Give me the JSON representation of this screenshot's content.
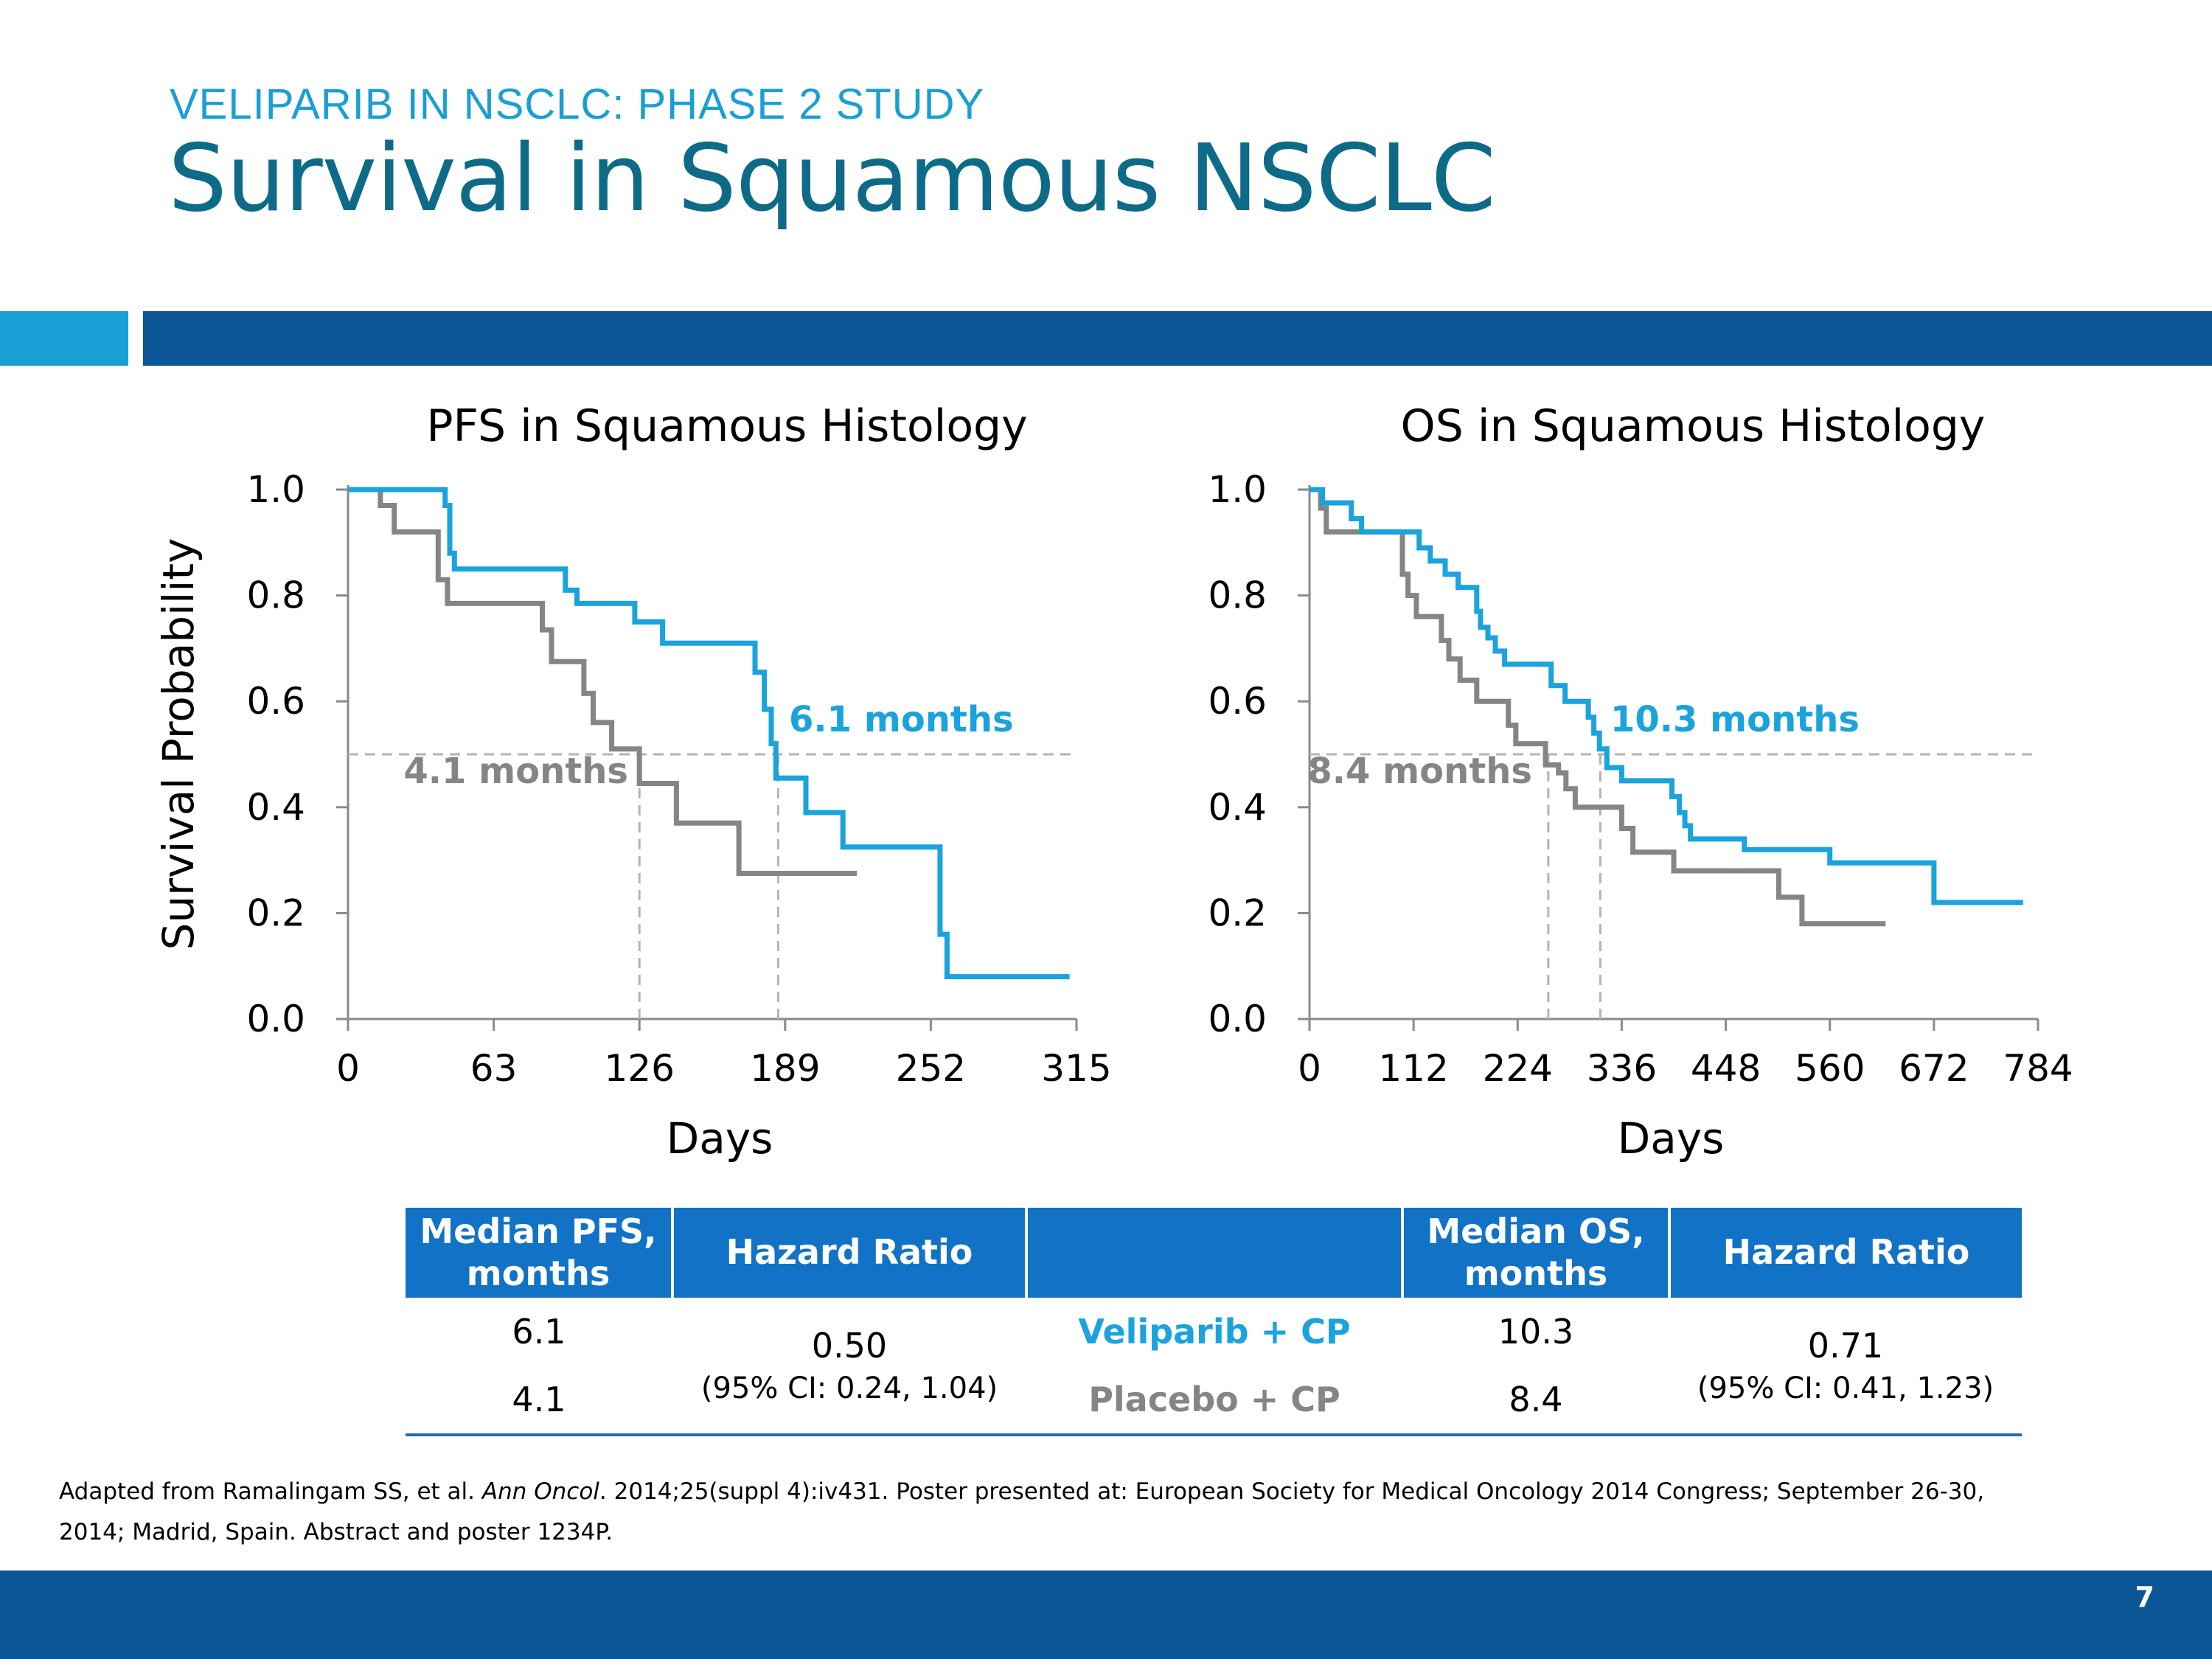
{
  "header": {
    "subtitle": "VELIPARIB IN NSCLC: PHASE 2 STUDY",
    "title": "Survival in Squamous NSCLC"
  },
  "colors": {
    "veliparib": "#1aa3dc",
    "placebo": "#858585",
    "accent": "#0c5696"
  },
  "chart_data": [
    {
      "type": "line",
      "title": "PFS in Squamous Histology",
      "xlabel": "Days",
      "ylabel": "Survival Probability",
      "xlim": [
        0,
        315
      ],
      "ylim": [
        0,
        1
      ],
      "xticks": [
        0,
        63,
        126,
        189,
        252,
        315
      ],
      "yticks": [
        "0.0",
        "0.2",
        "0.4",
        "0.6",
        "0.8",
        "1.0"
      ],
      "median_line_y": 0.5,
      "series": [
        {
          "arm": "veliparib",
          "median_x": 186,
          "median_label": "6.1 months",
          "points": [
            [
              0,
              1.0
            ],
            [
              42,
              1.0
            ],
            [
              42,
              0.97
            ],
            [
              44,
              0.97
            ],
            [
              44,
              0.88
            ],
            [
              46,
              0.88
            ],
            [
              46,
              0.85
            ],
            [
              94,
              0.85
            ],
            [
              94,
              0.81
            ],
            [
              99,
              0.81
            ],
            [
              99,
              0.785
            ],
            [
              124,
              0.785
            ],
            [
              124,
              0.75
            ],
            [
              136,
              0.75
            ],
            [
              136,
              0.71
            ],
            [
              176,
              0.71
            ],
            [
              176,
              0.655
            ],
            [
              180,
              0.655
            ],
            [
              180,
              0.585
            ],
            [
              183,
              0.585
            ],
            [
              183,
              0.52
            ],
            [
              185,
              0.52
            ],
            [
              185,
              0.455
            ],
            [
              198,
              0.455
            ],
            [
              198,
              0.39
            ],
            [
              214,
              0.39
            ],
            [
              214,
              0.325
            ],
            [
              256,
              0.325
            ],
            [
              256,
              0.16
            ],
            [
              259,
              0.16
            ],
            [
              259,
              0.08
            ],
            [
              312,
              0.08
            ]
          ]
        },
        {
          "arm": "placebo",
          "median_x": 126,
          "median_label": "4.1 months",
          "points": [
            [
              0,
              1.0
            ],
            [
              14,
              1.0
            ],
            [
              14,
              0.97
            ],
            [
              20,
              0.97
            ],
            [
              20,
              0.92
            ],
            [
              39,
              0.92
            ],
            [
              39,
              0.83
            ],
            [
              43,
              0.83
            ],
            [
              43,
              0.785
            ],
            [
              84,
              0.785
            ],
            [
              84,
              0.735
            ],
            [
              88,
              0.735
            ],
            [
              88,
              0.675
            ],
            [
              102,
              0.675
            ],
            [
              102,
              0.615
            ],
            [
              106,
              0.615
            ],
            [
              106,
              0.56
            ],
            [
              114,
              0.56
            ],
            [
              114,
              0.51
            ],
            [
              126,
              0.51
            ],
            [
              126,
              0.445
            ],
            [
              142,
              0.445
            ],
            [
              142,
              0.37
            ],
            [
              169,
              0.37
            ],
            [
              169,
              0.275
            ],
            [
              220,
              0.275
            ]
          ]
        }
      ]
    },
    {
      "type": "line",
      "title": "OS in Squamous Histology",
      "xlabel": "Days",
      "ylabel": "",
      "xlim": [
        0,
        784
      ],
      "ylim": [
        0,
        1
      ],
      "xticks": [
        0,
        112,
        224,
        336,
        448,
        560,
        672,
        784
      ],
      "yticks": [
        "0.0",
        "0.2",
        "0.4",
        "0.6",
        "0.8",
        "1.0"
      ],
      "median_line_y": 0.5,
      "series": [
        {
          "arm": "veliparib",
          "median_x": 313,
          "median_label": "10.3 months",
          "points": [
            [
              0,
              1.0
            ],
            [
              14,
              1.0
            ],
            [
              14,
              0.975
            ],
            [
              45,
              0.975
            ],
            [
              45,
              0.945
            ],
            [
              56,
              0.945
            ],
            [
              56,
              0.92
            ],
            [
              118,
              0.92
            ],
            [
              118,
              0.89
            ],
            [
              130,
              0.89
            ],
            [
              130,
              0.865
            ],
            [
              146,
              0.865
            ],
            [
              146,
              0.84
            ],
            [
              160,
              0.84
            ],
            [
              160,
              0.815
            ],
            [
              180,
              0.815
            ],
            [
              180,
              0.77
            ],
            [
              184,
              0.77
            ],
            [
              184,
              0.74
            ],
            [
              192,
              0.74
            ],
            [
              192,
              0.72
            ],
            [
              200,
              0.72
            ],
            [
              200,
              0.695
            ],
            [
              210,
              0.695
            ],
            [
              210,
              0.67
            ],
            [
              260,
              0.67
            ],
            [
              260,
              0.63
            ],
            [
              275,
              0.63
            ],
            [
              275,
              0.6
            ],
            [
              300,
              0.6
            ],
            [
              300,
              0.57
            ],
            [
              306,
              0.57
            ],
            [
              306,
              0.54
            ],
            [
              312,
              0.54
            ],
            [
              312,
              0.51
            ],
            [
              320,
              0.51
            ],
            [
              320,
              0.475
            ],
            [
              336,
              0.475
            ],
            [
              336,
              0.45
            ],
            [
              390,
              0.45
            ],
            [
              390,
              0.42
            ],
            [
              398,
              0.42
            ],
            [
              398,
              0.39
            ],
            [
              404,
              0.39
            ],
            [
              404,
              0.365
            ],
            [
              410,
              0.365
            ],
            [
              410,
              0.34
            ],
            [
              468,
              0.34
            ],
            [
              468,
              0.32
            ],
            [
              560,
              0.32
            ],
            [
              560,
              0.295
            ],
            [
              672,
              0.295
            ],
            [
              672,
              0.22
            ],
            [
              768,
              0.22
            ]
          ]
        },
        {
          "arm": "placebo",
          "median_x": 257,
          "median_label": "8.4 months",
          "points": [
            [
              0,
              1.0
            ],
            [
              12,
              1.0
            ],
            [
              12,
              0.965
            ],
            [
              18,
              0.965
            ],
            [
              18,
              0.92
            ],
            [
              100,
              0.92
            ],
            [
              100,
              0.84
            ],
            [
              106,
              0.84
            ],
            [
              106,
              0.8
            ],
            [
              115,
              0.8
            ],
            [
              115,
              0.76
            ],
            [
              142,
              0.76
            ],
            [
              142,
              0.715
            ],
            [
              150,
              0.715
            ],
            [
              150,
              0.68
            ],
            [
              162,
              0.68
            ],
            [
              162,
              0.64
            ],
            [
              180,
              0.64
            ],
            [
              180,
              0.6
            ],
            [
              214,
              0.6
            ],
            [
              214,
              0.555
            ],
            [
              222,
              0.555
            ],
            [
              222,
              0.52
            ],
            [
              254,
              0.52
            ],
            [
              254,
              0.48
            ],
            [
              268,
              0.48
            ],
            [
              268,
              0.465
            ],
            [
              276,
              0.465
            ],
            [
              276,
              0.435
            ],
            [
              286,
              0.435
            ],
            [
              286,
              0.4
            ],
            [
              336,
              0.4
            ],
            [
              336,
              0.36
            ],
            [
              348,
              0.36
            ],
            [
              348,
              0.315
            ],
            [
              392,
              0.315
            ],
            [
              392,
              0.28
            ],
            [
              505,
              0.28
            ],
            [
              505,
              0.23
            ],
            [
              530,
              0.23
            ],
            [
              530,
              0.18
            ],
            [
              620,
              0.18
            ]
          ]
        }
      ]
    }
  ],
  "table": {
    "headers": [
      "Median PFS,\nmonths",
      "Hazard Ratio",
      "",
      "Median OS,\nmonths",
      "Hazard Ratio"
    ],
    "pfs_hr": "0.50",
    "pfs_ci": "(95% CI: 0.24, 1.04)",
    "os_hr": "0.71",
    "os_ci": "(95% CI: 0.41, 1.23)",
    "rows": [
      {
        "pfs": "6.1",
        "arm": "Veliparib + CP",
        "os": "10.3"
      },
      {
        "pfs": "4.1",
        "arm": "Placebo + CP",
        "os": "8.4"
      }
    ]
  },
  "footnote": {
    "before_italic": "Adapted from Ramalingam SS, et al. ",
    "italic": "Ann Oncol",
    "after_italic": ". 2014;25(suppl 4):iv431. Poster presented at: European Society for Medical Oncology 2014 Congress; September 26-30, 2014; Madrid, Spain. Abstract and poster 1234P."
  },
  "page_number": "7"
}
